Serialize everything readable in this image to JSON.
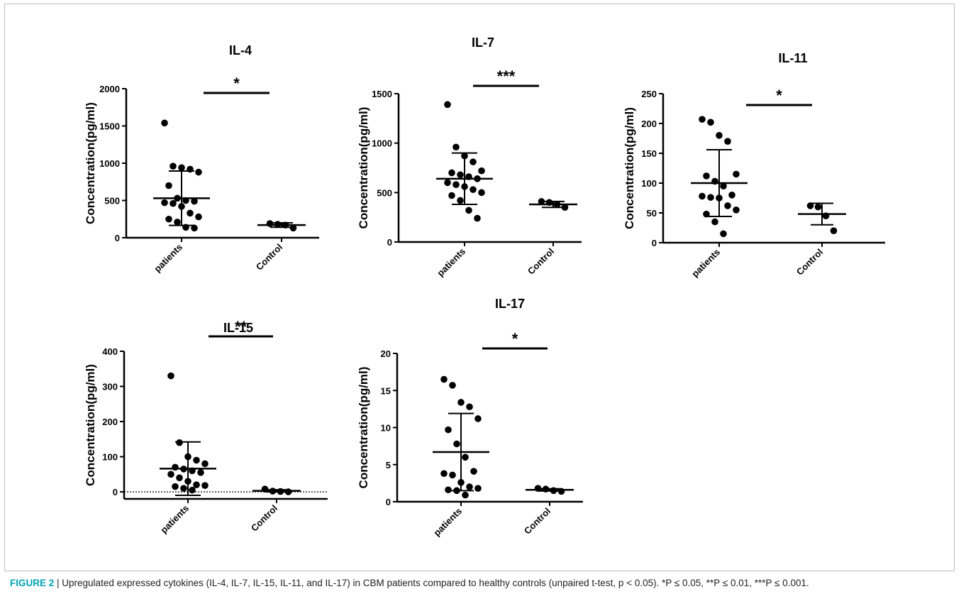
{
  "caption": {
    "label": "FIGURE 2",
    "separator": " | ",
    "text": "Upregulated expressed cytokines (IL-4, IL-7, IL-15, IL-11, and IL-17) in CBM patients compared to healthy controls (unpaired t-test, p < 0.05). *P ≤ 0.05, **P ≤ 0.01, ***P ≤ 0.001."
  },
  "chart_data": [
    {
      "type": "scatter",
      "title": "IL-4",
      "ylabel": "Concentration(pg/ml)",
      "categories": [
        "patients",
        "Control"
      ],
      "ylim": [
        0,
        2000
      ],
      "yticks": [
        0,
        500,
        1000,
        1500,
        2000
      ],
      "significance": "*",
      "series": [
        {
          "values": [
            1540,
            960,
            940,
            920,
            880,
            700,
            530,
            500,
            490,
            470,
            460,
            420,
            330,
            280,
            250,
            210,
            140,
            130
          ],
          "mean": 530,
          "sd": 365
        },
        {
          "values": [
            190,
            180,
            170,
            130
          ],
          "mean": 170,
          "sd": 30
        }
      ]
    },
    {
      "type": "scatter",
      "title": "IL-7",
      "ylabel": "Concentration(pg/ml)",
      "categories": [
        "patients",
        "Control"
      ],
      "ylim": [
        0,
        1500
      ],
      "yticks": [
        0,
        500,
        1000,
        1500
      ],
      "significance": "***",
      "series": [
        {
          "values": [
            1390,
            960,
            870,
            810,
            720,
            700,
            680,
            660,
            640,
            600,
            580,
            560,
            530,
            500,
            470,
            420,
            320,
            240
          ],
          "mean": 640,
          "sd": 260
        },
        {
          "values": [
            410,
            400,
            380,
            350
          ],
          "mean": 380,
          "sd": 30
        }
      ]
    },
    {
      "type": "scatter",
      "title": "IL-11",
      "ylabel": "Concentration(pg/ml)",
      "categories": [
        "patients",
        "Control"
      ],
      "ylim": [
        0,
        250
      ],
      "yticks": [
        0,
        50,
        100,
        150,
        200,
        250
      ],
      "significance": "*",
      "series": [
        {
          "values": [
            207,
            202,
            180,
            170,
            115,
            112,
            103,
            95,
            80,
            78,
            76,
            75,
            62,
            55,
            48,
            35,
            15
          ],
          "mean": 100,
          "sd": 56
        },
        {
          "values": [
            62,
            60,
            45,
            20
          ],
          "mean": 48,
          "sd": 18
        }
      ]
    },
    {
      "type": "scatter",
      "title": "IL-15",
      "ylabel": "Concentration(pg/ml)",
      "categories": [
        "patients",
        "Control"
      ],
      "ylim": [
        -20,
        400
      ],
      "yticks": [
        0,
        100,
        200,
        300,
        400
      ],
      "reference_line": 0,
      "significance": "**",
      "series": [
        {
          "values": [
            330,
            140,
            100,
            90,
            80,
            70,
            65,
            60,
            55,
            50,
            40,
            30,
            20,
            18,
            15,
            10,
            5
          ],
          "mean": 66,
          "sd": 76
        },
        {
          "values": [
            8,
            2,
            1,
            0
          ],
          "mean": 3,
          "sd": 3
        }
      ]
    },
    {
      "type": "scatter",
      "title": "IL-17",
      "ylabel": "Concentration(pg/ml)",
      "categories": [
        "patients",
        "Control"
      ],
      "ylim": [
        0,
        20
      ],
      "yticks": [
        0,
        5,
        10,
        15,
        20
      ],
      "significance": "*",
      "series": [
        {
          "values": [
            16.5,
            15.7,
            13.4,
            12.8,
            11.2,
            9.7,
            7.8,
            6.0,
            4.1,
            3.8,
            3.6,
            2.6,
            2.0,
            1.8,
            1.6,
            1.5,
            0.9
          ],
          "mean": 6.7,
          "sd": 5.2
        },
        {
          "values": [
            1.8,
            1.7,
            1.5,
            1.4
          ],
          "mean": 1.6,
          "sd": 0.15
        }
      ]
    }
  ]
}
